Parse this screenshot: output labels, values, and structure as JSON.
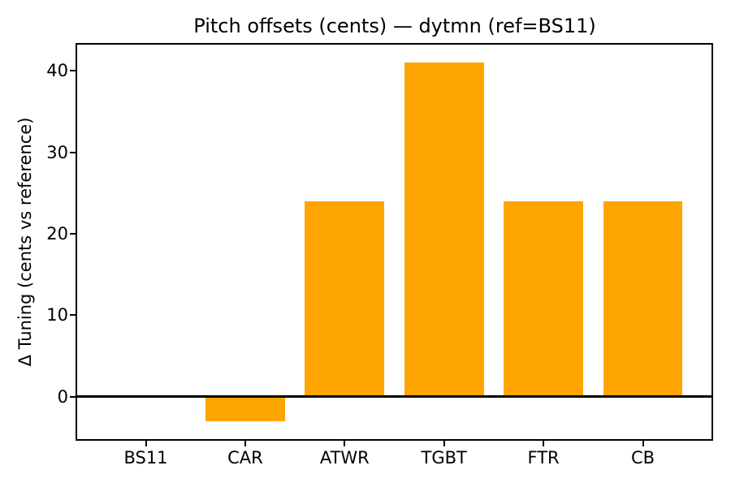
{
  "figure": {
    "title": "Pitch offsets (cents) — dytmn (ref=BS11)"
  },
  "chart_data": {
    "type": "bar",
    "title": "Pitch offsets (cents) — dytmn (ref=BS11)",
    "xlabel": "",
    "ylabel": "Δ Tuning (cents vs reference)",
    "categories": [
      "BS11",
      "CAR",
      "ATWR",
      "TGBT",
      "FTR",
      "CB"
    ],
    "values": [
      0,
      -3,
      24,
      41,
      24,
      24
    ],
    "yticks": [
      0,
      10,
      20,
      30,
      40
    ],
    "ylim": [
      -5.2,
      43.2
    ],
    "xlim": [
      -0.69,
      5.69
    ],
    "bar_width": 0.8,
    "zero_line": true,
    "grid": false,
    "legend": "none",
    "colors": {
      "bar": "#FFA500",
      "axis": "#000000",
      "background": "#FFFFFF"
    }
  }
}
